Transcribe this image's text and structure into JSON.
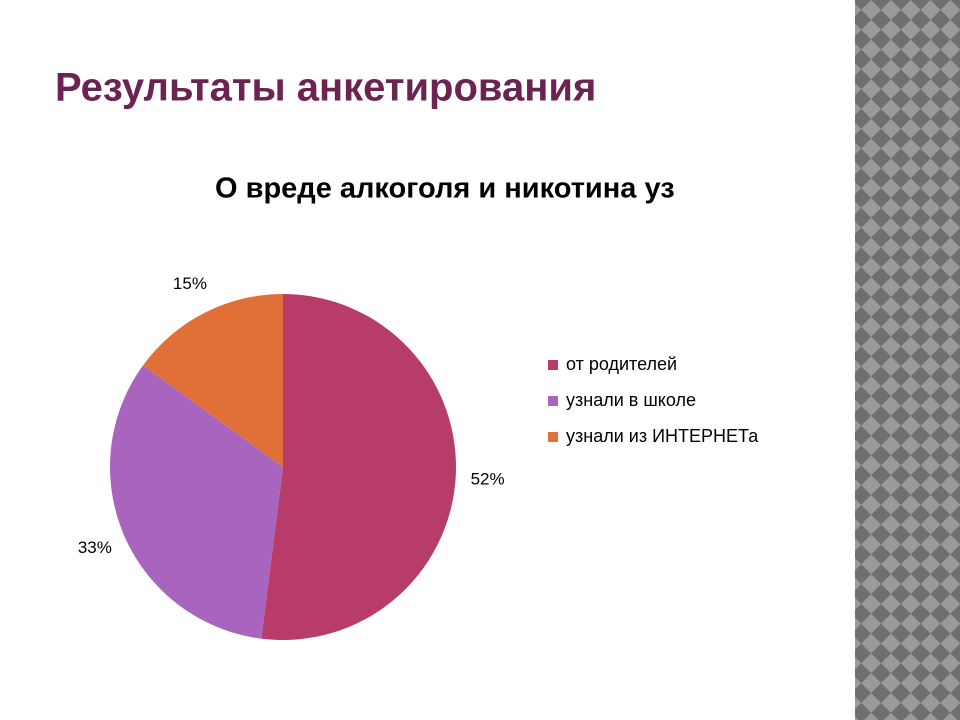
{
  "slide_title": "Результаты анкетирования",
  "chart_data": {
    "type": "pie",
    "title": "О вреде алкоголя и никотина уз",
    "categories": [
      "от родителей",
      "узнали в школе",
      "узнали из ИНТЕРНЕТа"
    ],
    "values": [
      52,
      33,
      15
    ],
    "value_labels": [
      "52%",
      "33%",
      "15%"
    ],
    "colors": [
      "#b83c6a",
      "#a965bd",
      "#e07037"
    ]
  }
}
